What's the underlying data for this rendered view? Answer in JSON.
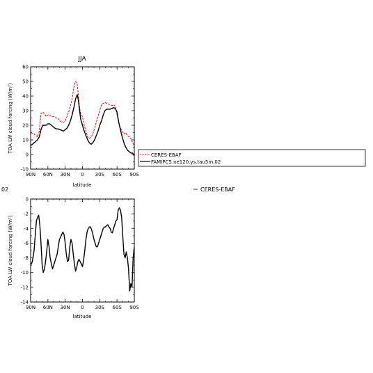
{
  "chart_data": [
    {
      "type": "line",
      "title": "JJA",
      "xlabel": "latitude",
      "ylabel": "TOA LW cloud forcing (W/m²)",
      "x_ticklabels": [
        "90N",
        "60N",
        "30N",
        "0",
        "30S",
        "60S",
        "90S"
      ],
      "y_ticklabels": [
        "-10",
        "0",
        "10",
        "20",
        "30",
        "40",
        "50",
        "60"
      ],
      "xlim": [
        90,
        -90
      ],
      "ylim": [
        -10,
        60
      ],
      "series": [
        {
          "name": "CERES-EBAF",
          "color": "#ff0000",
          "style": "dashed",
          "x": [
            90,
            87,
            84,
            81,
            78,
            75,
            72,
            69,
            66,
            63,
            60,
            57,
            54,
            51,
            48,
            45,
            42,
            39,
            36,
            33,
            30,
            27,
            24,
            21,
            18,
            15,
            12,
            9,
            7,
            5,
            3,
            0,
            -3,
            -6,
            -9,
            -12,
            -15,
            -18,
            -21,
            -24,
            -27,
            -30,
            -33,
            -36,
            -39,
            -42,
            -45,
            -48,
            -51,
            -54,
            -57,
            -60,
            -63,
            -66,
            -69,
            -72,
            -75,
            -78,
            -81,
            -84,
            -87,
            -90
          ],
          "values": [
            15,
            14.5,
            14,
            13,
            12,
            16,
            28,
            29,
            28,
            26,
            27,
            27,
            26,
            26,
            25.5,
            25,
            24.5,
            23,
            22,
            22,
            23,
            26,
            29,
            33,
            38,
            46,
            50,
            48,
            40,
            32,
            28,
            26,
            20,
            16,
            12,
            11,
            12,
            14,
            18,
            22,
            26,
            30,
            34,
            35,
            35.5,
            35,
            34.5,
            34,
            33.5,
            34,
            33,
            27,
            22,
            18,
            16,
            14,
            15,
            13,
            12,
            11,
            8,
            6
          ]
        },
        {
          "name": "FAMIPC5.ne120.ys.tau5m.02",
          "color": "#000000",
          "style": "solid",
          "x": [
            90,
            87,
            84,
            81,
            78,
            75,
            72,
            69,
            66,
            63,
            60,
            57,
            54,
            51,
            48,
            45,
            42,
            39,
            36,
            33,
            30,
            27,
            24,
            21,
            18,
            15,
            12,
            9,
            7,
            5,
            3,
            0,
            -3,
            -6,
            -9,
            -12,
            -15,
            -18,
            -21,
            -24,
            -27,
            -30,
            -33,
            -36,
            -39,
            -42,
            -45,
            -48,
            -51,
            -54,
            -57,
            -60,
            -63,
            -66,
            -69,
            -72,
            -75,
            -78,
            -81,
            -84,
            -87,
            -90
          ],
          "values": [
            6,
            7,
            8,
            9,
            10,
            12,
            17,
            20,
            20,
            20,
            21,
            21,
            20,
            19,
            18,
            17.5,
            17.5,
            17,
            16.5,
            16,
            17,
            18,
            20,
            23,
            27,
            32,
            38,
            41,
            37,
            30,
            24,
            20,
            16,
            13,
            10,
            8,
            7,
            8,
            10,
            13,
            16,
            20,
            23,
            27,
            30,
            31,
            31,
            31,
            31.5,
            32,
            31.5,
            29,
            22,
            17,
            12,
            8,
            5,
            3,
            2,
            1,
            1,
            -1
          ]
        }
      ],
      "legend": {
        "entries": [
          "CERES-EBAF",
          "FAMIPC5.ne120.ys.tau5m.02"
        ],
        "placement": "right"
      }
    },
    {
      "type": "line",
      "title": "",
      "xlabel": "latitude",
      "ylabel": "TOA LW cloud forcing (W/m²)",
      "x_ticklabels": [
        "90N",
        "60N",
        "30N",
        "0",
        "30S",
        "60S",
        "90S"
      ],
      "y_ticklabels": [
        "-14",
        "-12",
        "-10",
        "-8",
        "-6",
        "-4",
        "-2",
        "0"
      ],
      "xlim": [
        90,
        -90
      ],
      "ylim": [
        -14,
        0
      ],
      "series": [
        {
          "name": "",
          "color": "#000000",
          "style": "solid",
          "x": [
            90,
            87,
            84,
            82,
            80,
            78,
            76,
            74,
            72,
            70,
            68,
            66,
            64,
            62,
            60,
            58,
            56,
            54,
            52,
            50,
            48,
            46,
            44,
            42,
            40,
            38,
            36,
            34,
            32,
            30,
            28,
            26,
            24,
            22,
            20,
            18,
            16,
            14,
            12,
            10,
            8,
            6,
            4,
            2,
            0,
            -2,
            -4,
            -6,
            -8,
            -10,
            -12,
            -14,
            -16,
            -18,
            -20,
            -22,
            -24,
            -26,
            -28,
            -30,
            -32,
            -34,
            -36,
            -38,
            -40,
            -42,
            -44,
            -46,
            -48,
            -50,
            -52,
            -54,
            -56,
            -58,
            -60,
            -62,
            -64,
            -66,
            -68,
            -70,
            -72,
            -74,
            -76,
            -78,
            -80,
            -82,
            -84,
            -86,
            -88,
            -90
          ],
          "values": [
            -9,
            -8.5,
            -7,
            -5,
            -3,
            -2.5,
            -2.2,
            -3.5,
            -6,
            -9,
            -10,
            -9.5,
            -8.5,
            -7,
            -5.5,
            -6.5,
            -8,
            -8.8,
            -9.5,
            -9,
            -8.5,
            -8,
            -7.5,
            -6.5,
            -5.5,
            -5.2,
            -4.8,
            -4.5,
            -4.8,
            -6,
            -7.5,
            -8.5,
            -8.3,
            -6.5,
            -5.5,
            -6,
            -7.5,
            -8.8,
            -9.8,
            -9.3,
            -8.5,
            -8.2,
            -8.5,
            -8.8,
            -9.2,
            -8.3,
            -7,
            -5.5,
            -4.5,
            -4,
            -3.8,
            -3.8,
            -4.2,
            -4.8,
            -5.5,
            -6,
            -6.5,
            -6.5,
            -6,
            -5.5,
            -5,
            -4.5,
            -4,
            -3.8,
            -3.8,
            -3.6,
            -3.5,
            -3.8,
            -4,
            -4.5,
            -4.6,
            -4,
            -3.5,
            -3,
            -2.8,
            -1.5,
            -1.2,
            -1.5,
            -2.5,
            -5,
            -7.5,
            -8,
            -7.2,
            -8,
            -9.5,
            -12.5,
            -11.5,
            -12,
            -8,
            -6.5
          ]
        }
      ],
      "legend_text": "CERES-EBAF",
      "left_clipped_text": "02"
    }
  ]
}
